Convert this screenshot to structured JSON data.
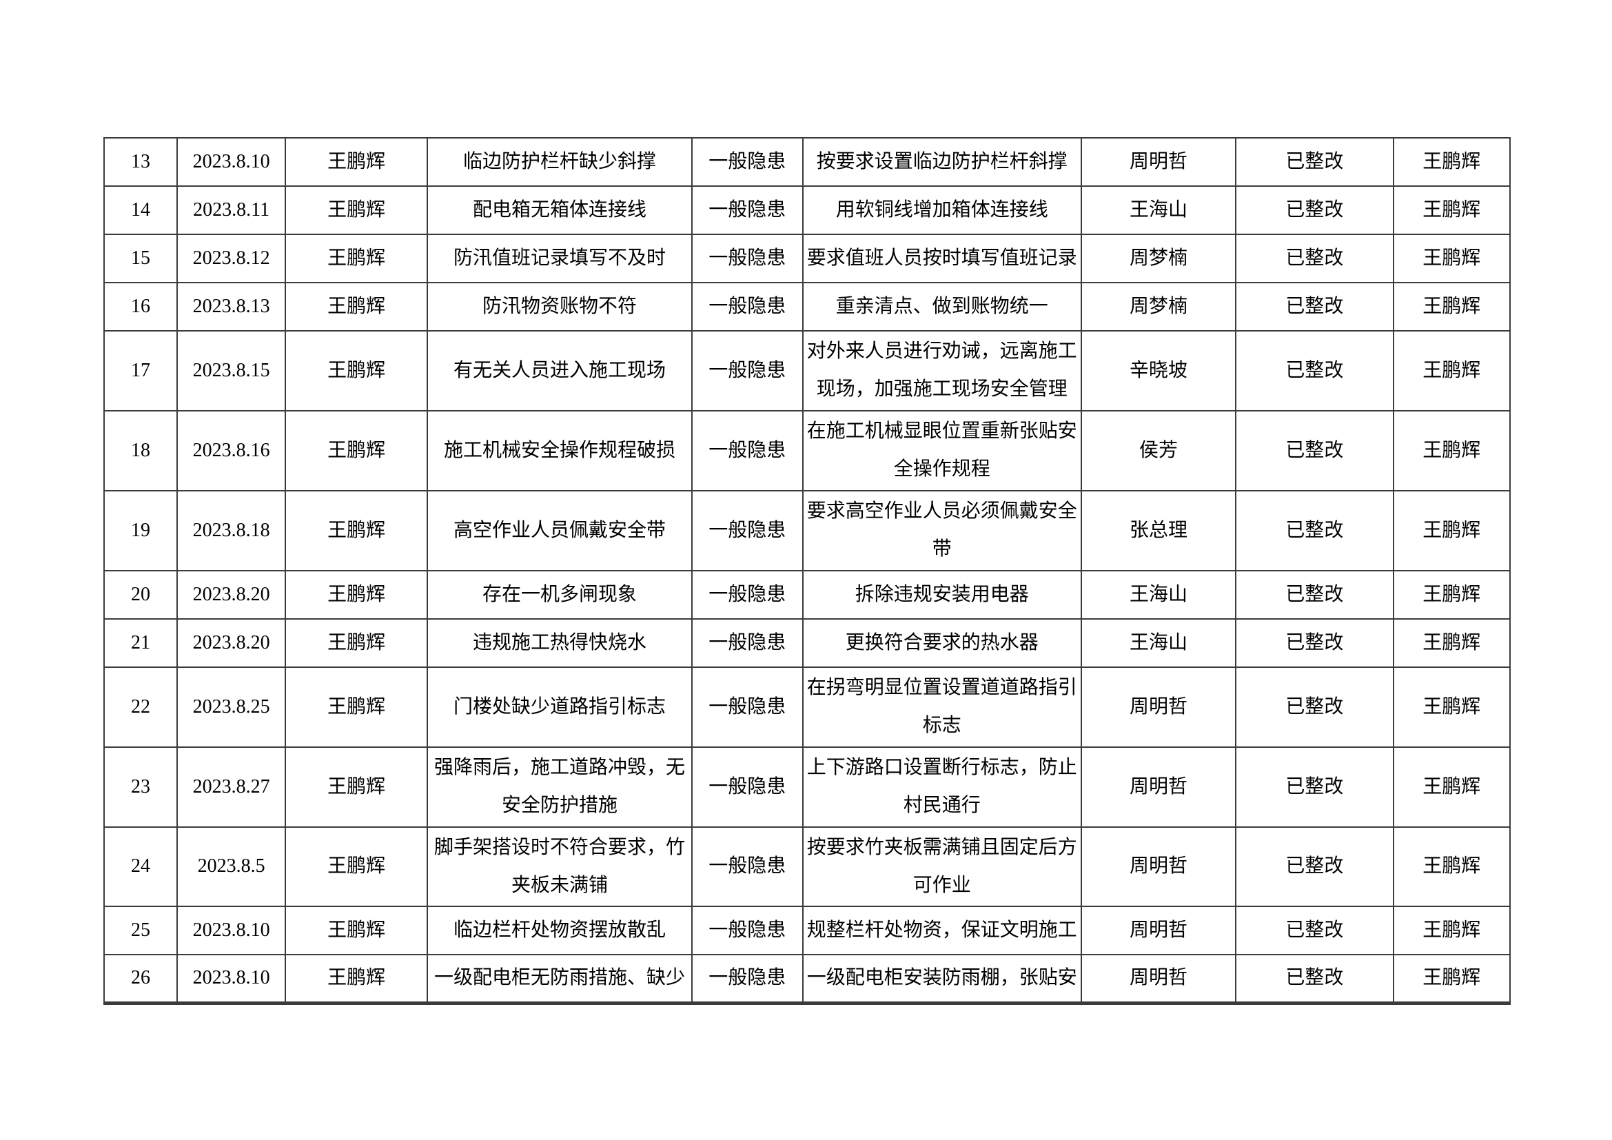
{
  "colors": {
    "page_background": "#ffffff",
    "table_border": "#3b3b3b",
    "text": "#000000"
  },
  "table": {
    "rows": [
      {
        "no": "13",
        "date": "2023.8.10",
        "inspector": "王鹏辉",
        "hazard": "临边防护栏杆缺少斜撑",
        "level": "一般隐患",
        "measure": "按要求设置临边防护栏杆斜撑",
        "responsible": "周明哲",
        "status": "已整改",
        "verifier": "王鹏辉",
        "size": "single"
      },
      {
        "no": "14",
        "date": "2023.8.11",
        "inspector": "王鹏辉",
        "hazard": "配电箱无箱体连接线",
        "level": "一般隐患",
        "measure": "用软铜线增加箱体连接线",
        "responsible": "王海山",
        "status": "已整改",
        "verifier": "王鹏辉",
        "size": "single"
      },
      {
        "no": "15",
        "date": "2023.8.12",
        "inspector": "王鹏辉",
        "hazard": "防汛值班记录填写不及时",
        "level": "一般隐患",
        "measure": "要求值班人员按时填写值班记录",
        "responsible": "周梦楠",
        "status": "已整改",
        "verifier": "王鹏辉",
        "size": "single"
      },
      {
        "no": "16",
        "date": "2023.8.13",
        "inspector": "王鹏辉",
        "hazard": "防汛物资账物不符",
        "level": "一般隐患",
        "measure": "重亲清点、做到账物统一",
        "responsible": "周梦楠",
        "status": "已整改",
        "verifier": "王鹏辉",
        "size": "single"
      },
      {
        "no": "17",
        "date": "2023.8.15",
        "inspector": "王鹏辉",
        "hazard": "有无关人员进入施工现场",
        "level": "一般隐患",
        "measure": "对外来人员进行劝诫，远离施工现场，加强施工现场安全管理",
        "responsible": "辛晓坡",
        "status": "已整改",
        "verifier": "王鹏辉",
        "size": "double"
      },
      {
        "no": "18",
        "date": "2023.8.16",
        "inspector": "王鹏辉",
        "hazard": "施工机械安全操作规程破损",
        "level": "一般隐患",
        "measure": "在施工机械显眼位置重新张贴安全操作规程",
        "responsible": "侯芳",
        "status": "已整改",
        "verifier": "王鹏辉",
        "size": "double"
      },
      {
        "no": "19",
        "date": "2023.8.18",
        "inspector": "王鹏辉",
        "hazard": "高空作业人员佩戴安全带",
        "level": "一般隐患",
        "measure": "要求高空作业人员必须佩戴安全带",
        "responsible": "张总理",
        "status": "已整改",
        "verifier": "王鹏辉",
        "size": "double"
      },
      {
        "no": "20",
        "date": "2023.8.20",
        "inspector": "王鹏辉",
        "hazard": "存在一机多闸现象",
        "level": "一般隐患",
        "measure": "拆除违规安装用电器",
        "responsible": "王海山",
        "status": "已整改",
        "verifier": "王鹏辉",
        "size": "single"
      },
      {
        "no": "21",
        "date": "2023.8.20",
        "inspector": "王鹏辉",
        "hazard": "违规施工热得快烧水",
        "level": "一般隐患",
        "measure": "更换符合要求的热水器",
        "responsible": "王海山",
        "status": "已整改",
        "verifier": "王鹏辉",
        "size": "single"
      },
      {
        "no": "22",
        "date": "2023.8.25",
        "inspector": "王鹏辉",
        "hazard": "门楼处缺少道路指引标志",
        "level": "一般隐患",
        "measure": "在拐弯明显位置设置道道路指引标志",
        "responsible": "周明哲",
        "status": "已整改",
        "verifier": "王鹏辉",
        "size": "double"
      },
      {
        "no": "23",
        "date": "2023.8.27",
        "inspector": "王鹏辉",
        "hazard": "强降雨后，施工道路冲毁，无安全防护措施",
        "level": "一般隐患",
        "measure": "上下游路口设置断行标志，防止村民通行",
        "responsible": "周明哲",
        "status": "已整改",
        "verifier": "王鹏辉",
        "size": "double"
      },
      {
        "no": "24",
        "date": "2023.8.5",
        "inspector": "王鹏辉",
        "hazard": "脚手架搭设时不符合要求，竹夹板未满铺",
        "level": "一般隐患",
        "measure": "按要求竹夹板需满铺且固定后方可作业",
        "responsible": "周明哲",
        "status": "已整改",
        "verifier": "王鹏辉",
        "size": "single"
      },
      {
        "no": "25",
        "date": "2023.8.10",
        "inspector": "王鹏辉",
        "hazard": "临边栏杆处物资摆放散乱",
        "level": "一般隐患",
        "measure": "规整栏杆处物资，保证文明施工",
        "responsible": "周明哲",
        "status": "已整改",
        "verifier": "王鹏辉",
        "size": "single"
      },
      {
        "no": "26",
        "date": "2023.8.10",
        "inspector": "王鹏辉",
        "hazard": "一级配电柜无防雨措施、缺少",
        "level": "一般隐患",
        "measure": "一级配电柜安装防雨棚，张贴安",
        "responsible": "周明哲",
        "status": "已整改",
        "verifier": "王鹏辉",
        "size": "single"
      }
    ]
  }
}
